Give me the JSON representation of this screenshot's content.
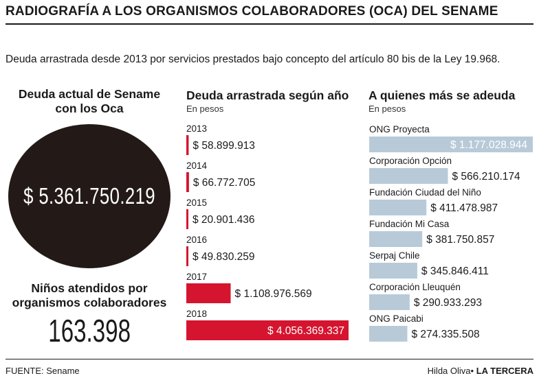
{
  "header": {
    "title": "RADIOGRAFÍA A LOS ORGANISMOS COLABORADORES (OCA) DEL SENAME",
    "subtitle": "Deuda arrastrada desde 2013 por servicios prestados bajo concepto del artículo 80 bis de la Ley 19.968."
  },
  "summary": {
    "debt_heading": "Deuda actual de Sename con los Oca",
    "debt_value": "$ 5.361.750.219",
    "children_heading": "Niños atendidos por organismos colaboradores",
    "children_value": "163.398"
  },
  "chart_data": [
    {
      "type": "bar",
      "orientation": "horizontal",
      "title": "Deuda arrastrada según año",
      "subtitle": "En pesos",
      "categories": [
        "2013",
        "2014",
        "2015",
        "2016",
        "2017",
        "2018"
      ],
      "values": [
        58899913,
        66772705,
        20901436,
        49830259,
        1108976569,
        4056369337
      ],
      "value_labels": [
        "$ 58.899.913",
        "$ 66.772.705",
        "$ 20.901.436",
        "$ 49.830.259",
        "$ 1.108.976.569",
        "$ 4.056.369.337"
      ],
      "color": "#d5152f"
    },
    {
      "type": "bar",
      "orientation": "horizontal",
      "title": "A quienes más se adeuda",
      "subtitle": "En pesos",
      "categories": [
        "ONG Proyecta",
        "Corporación Opción",
        "Fundación Ciudad del Niño",
        "Fundación Mi Casa",
        "Serpaj Chile",
        "Corporación Lleuquén",
        "ONG Paicabi"
      ],
      "values": [
        1177028944,
        566210174,
        411478987,
        381750857,
        345846411,
        290933293,
        274335508
      ],
      "value_labels": [
        "$ 1.177.028.944",
        "$ 566.210.174",
        "$ 411.478.987",
        "$ 381.750.857",
        "$ 345.846.411",
        "$ 290.933.293",
        "$ 274.335.508"
      ],
      "color": "#b8cad8"
    }
  ],
  "footer": {
    "source": "FUENTE: Sename",
    "author": "Hilda Oliva",
    "outlet": "LA TERCERA"
  }
}
